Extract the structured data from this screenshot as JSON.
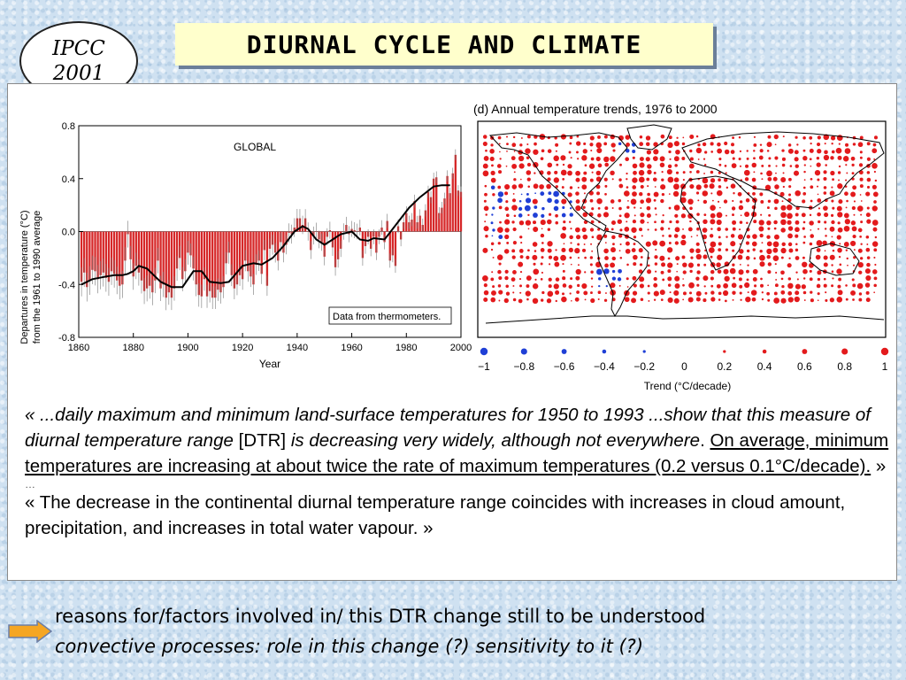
{
  "badge": {
    "line1": "IPCC",
    "line2": "2001"
  },
  "title": "DIURNAL  CYCLE  AND  CLIMATE",
  "colors": {
    "bar_red": "#d62728",
    "line_black": "#000000",
    "dot_red": "#e31a1c",
    "dot_blue": "#1f3fd6",
    "title_bg": "#ffffcc"
  },
  "chart_data": [
    {
      "type": "bar",
      "title": "GLOBAL",
      "ylabel": "Departures in temperature (°C) from the 1961 to 1990 average",
      "xlabel": "Year",
      "annotation": "Data from thermometers.",
      "xlim": [
        1860,
        2000
      ],
      "ylim": [
        -0.8,
        0.8
      ],
      "xticks": [
        "1860",
        "1880",
        "1900",
        "1920",
        "1940",
        "1960",
        "1980",
        "2000"
      ],
      "yticks": [
        "0.8",
        "0.4",
        "0.0",
        "-0.4",
        "-0.8"
      ],
      "years_start": 1861,
      "values": [
        -0.38,
        -0.31,
        -0.42,
        -0.37,
        -0.29,
        -0.3,
        -0.36,
        -0.33,
        -0.31,
        -0.35,
        -0.38,
        -0.3,
        -0.32,
        -0.37,
        -0.41,
        -0.4,
        -0.22,
        -0.02,
        -0.21,
        -0.34,
        -0.26,
        -0.31,
        -0.37,
        -0.45,
        -0.43,
        -0.41,
        -0.46,
        -0.37,
        -0.22,
        -0.43,
        -0.4,
        -0.5,
        -0.46,
        -0.5,
        -0.43,
        -0.28,
        -0.2,
        -0.36,
        -0.3,
        -0.16,
        -0.18,
        -0.28,
        -0.4,
        -0.48,
        -0.49,
        -0.36,
        -0.49,
        -0.45,
        -0.5,
        -0.5,
        -0.44,
        -0.46,
        -0.42,
        -0.24,
        -0.16,
        -0.33,
        -0.43,
        -0.4,
        -0.33,
        -0.36,
        -0.22,
        -0.3,
        -0.34,
        -0.4,
        -0.25,
        -0.22,
        -0.32,
        -0.14,
        -0.41,
        -0.13,
        -0.1,
        -0.16,
        -0.22,
        -0.08,
        -0.16,
        -0.1,
        -0.01,
        -0.02,
        0.03,
        0.1,
        0.1,
        0.05,
        0.1,
        0.0,
        -0.14,
        -0.03,
        0.0,
        -0.06,
        -0.08,
        -0.19,
        -0.04,
        0.01,
        -0.12,
        -0.27,
        -0.21,
        -0.13,
        0.0,
        0.05,
        -0.02,
        0.02,
        0.01,
        0.0,
        0.03,
        -0.2,
        -0.11,
        -0.04,
        -0.13,
        -0.04,
        -0.16,
        -0.04,
        0.03,
        -0.08,
        0.08,
        -0.22,
        -0.18,
        -0.26,
        0.04,
        -0.06,
        0.07,
        0.14,
        0.07,
        0.09,
        0.23,
        0.07,
        0.12,
        0.05,
        0.16,
        0.3,
        0.26,
        0.4,
        0.41,
        0.14,
        0.18,
        0.25,
        0.42,
        0.29,
        0.44,
        0.58,
        0.31,
        0.3
      ],
      "smoothed": [
        -0.4,
        -0.36,
        -0.34,
        -0.33,
        -0.33,
        -0.32,
        -0.3,
        -0.26,
        -0.28,
        -0.32,
        -0.38,
        -0.42,
        -0.42,
        -0.3,
        -0.3,
        -0.38,
        -0.39,
        -0.38,
        -0.26,
        -0.24,
        -0.25,
        -0.2,
        -0.11,
        0.0,
        0.04,
        0.02,
        -0.06,
        -0.1,
        -0.06,
        -0.02,
        0.0,
        -0.06,
        -0.07,
        -0.05,
        -0.06,
        0.02,
        0.1,
        0.18,
        0.26,
        0.34,
        0.35,
        0.35
      ],
      "smoothed_years": [
        1861,
        1865,
        1870,
        1873,
        1876,
        1878,
        1880,
        1882,
        1885,
        1887,
        1890,
        1894,
        1898,
        1902,
        1905,
        1908,
        1912,
        1915,
        1920,
        1924,
        1927,
        1931,
        1935,
        1939,
        1942,
        1944,
        1947,
        1950,
        1953,
        1956,
        1960,
        1963,
        1966,
        1968,
        1972,
        1975,
        1978,
        1981,
        1985,
        1990,
        1993,
        1996
      ]
    },
    {
      "type": "scatter",
      "title": "(d) Annual temperature trends, 1976 to 2000",
      "xlabel": "Trend (°C/decade)",
      "legend_ticks": [
        "−1",
        "−0.8",
        "−0.6",
        "−0.4",
        "−0.2",
        "0",
        "0.2",
        "0.4",
        "0.6",
        "0.8",
        "1"
      ],
      "legend_values": [
        -1,
        -0.8,
        -0.6,
        -0.4,
        -0.2,
        0,
        0.2,
        0.4,
        0.6,
        0.8,
        1
      ]
    }
  ],
  "quote1": {
    "part1": "« ...daily maximum and minimum land-surface temperatures for 1950 to 1993 ...show that this measure of diurnal temperature range ",
    "part2": "[DTR] ",
    "part3": "is decreasing very widely, although not everywhere",
    "part4": ". ",
    "part5": "On average, minimum temperatures are increasing at about twice the rate of maximum temperatures (0.2 versus 0.1°C/decade).",
    "part6": " »"
  },
  "ellipsis": "…",
  "quote2": "« The decrease in the continental diurnal temperature range coincides with increases in cloud amount, precipitation, and increases in total water vapour. »",
  "bottom": {
    "line1": "reasons for/factors involved in/ this DTR change  still to be understood",
    "line2_a": "convective processes:",
    "line2_b": " role in this change (?) sensitivity to it (?)"
  }
}
